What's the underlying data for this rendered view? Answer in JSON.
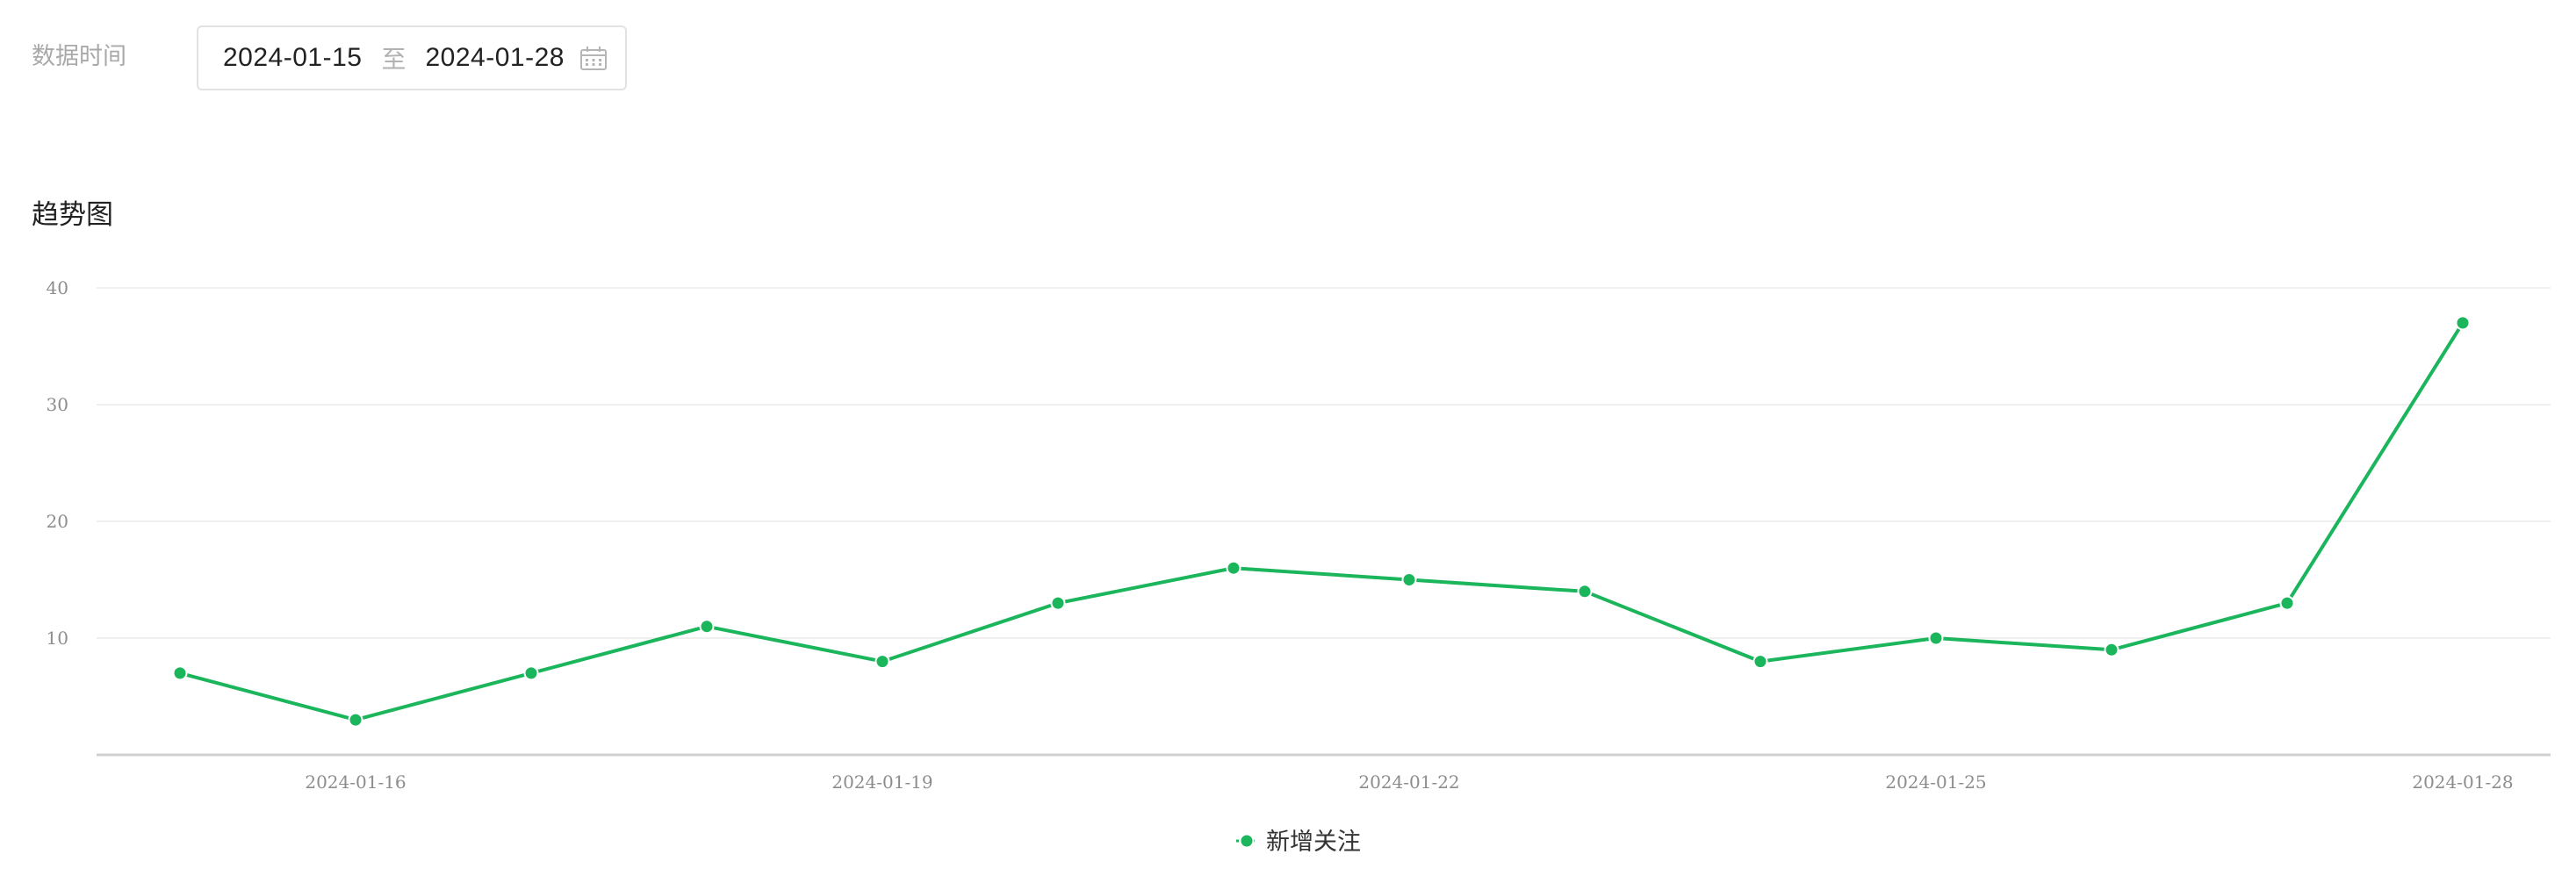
{
  "filter": {
    "label": "数据时间",
    "start_date": "2024-01-15",
    "separator": "至",
    "end_date": "2024-01-28",
    "icon": "calendar-icon"
  },
  "chart_title": "趋势图",
  "colors": {
    "series": "#1bb55c",
    "grid": "#efefef",
    "axis": "#cfcfcf",
    "tick_text": "#8d8d8d"
  },
  "chart_data": {
    "type": "line",
    "x": [
      "2024-01-15",
      "2024-01-16",
      "2024-01-17",
      "2024-01-18",
      "2024-01-19",
      "2024-01-20",
      "2024-01-21",
      "2024-01-22",
      "2024-01-23",
      "2024-01-24",
      "2024-01-25",
      "2024-01-26",
      "2024-01-27",
      "2024-01-28"
    ],
    "series": [
      {
        "name": "新增关注",
        "values": [
          7,
          3,
          7,
          11,
          8,
          13,
          16,
          15,
          14,
          8,
          10,
          9,
          13,
          37
        ]
      }
    ],
    "ylim": [
      0,
      40
    ],
    "yticks": [
      "10",
      "20",
      "30",
      "40"
    ],
    "xticks": [
      "2024-01-16",
      "2024-01-19",
      "2024-01-22",
      "2024-01-25",
      "2024-01-28"
    ],
    "grid": true,
    "legend": "bottom-center"
  }
}
